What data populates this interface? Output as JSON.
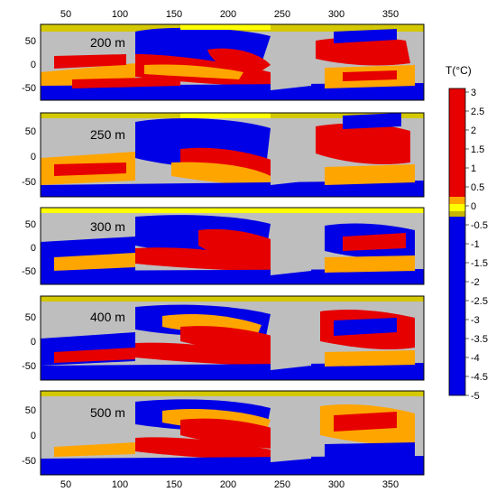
{
  "chart_data": {
    "type": "heatmap",
    "x_ticks": [
      50,
      100,
      150,
      200,
      250,
      300,
      350
    ],
    "xlim": [
      25,
      380
    ],
    "y_ticks": [
      50,
      0,
      -50
    ],
    "ylim": [
      -75,
      85
    ],
    "panels": [
      {
        "label": "200 m"
      },
      {
        "label": "250 m"
      },
      {
        "label": "300 m"
      },
      {
        "label": "400 m"
      },
      {
        "label": "500 m"
      }
    ],
    "colorbar": {
      "title": "T(°C)",
      "ticks": [
        "3",
        "2.5",
        "2",
        "1.5",
        "1",
        "0.5",
        "0",
        "-0.5",
        "-1",
        "-1.5",
        "-2",
        "-2.5",
        "-3",
        "-3.5",
        "-4",
        "-4.5",
        "-5"
      ],
      "range": [
        -5,
        3
      ],
      "colors": {
        "warm": "#e60000",
        "mid_warm": "#ffa500",
        "near_zero_pos": "#ffff00",
        "near_zero_neg": "#c8b400",
        "cold": "#0000e6",
        "land": "#bebebe"
      }
    }
  }
}
